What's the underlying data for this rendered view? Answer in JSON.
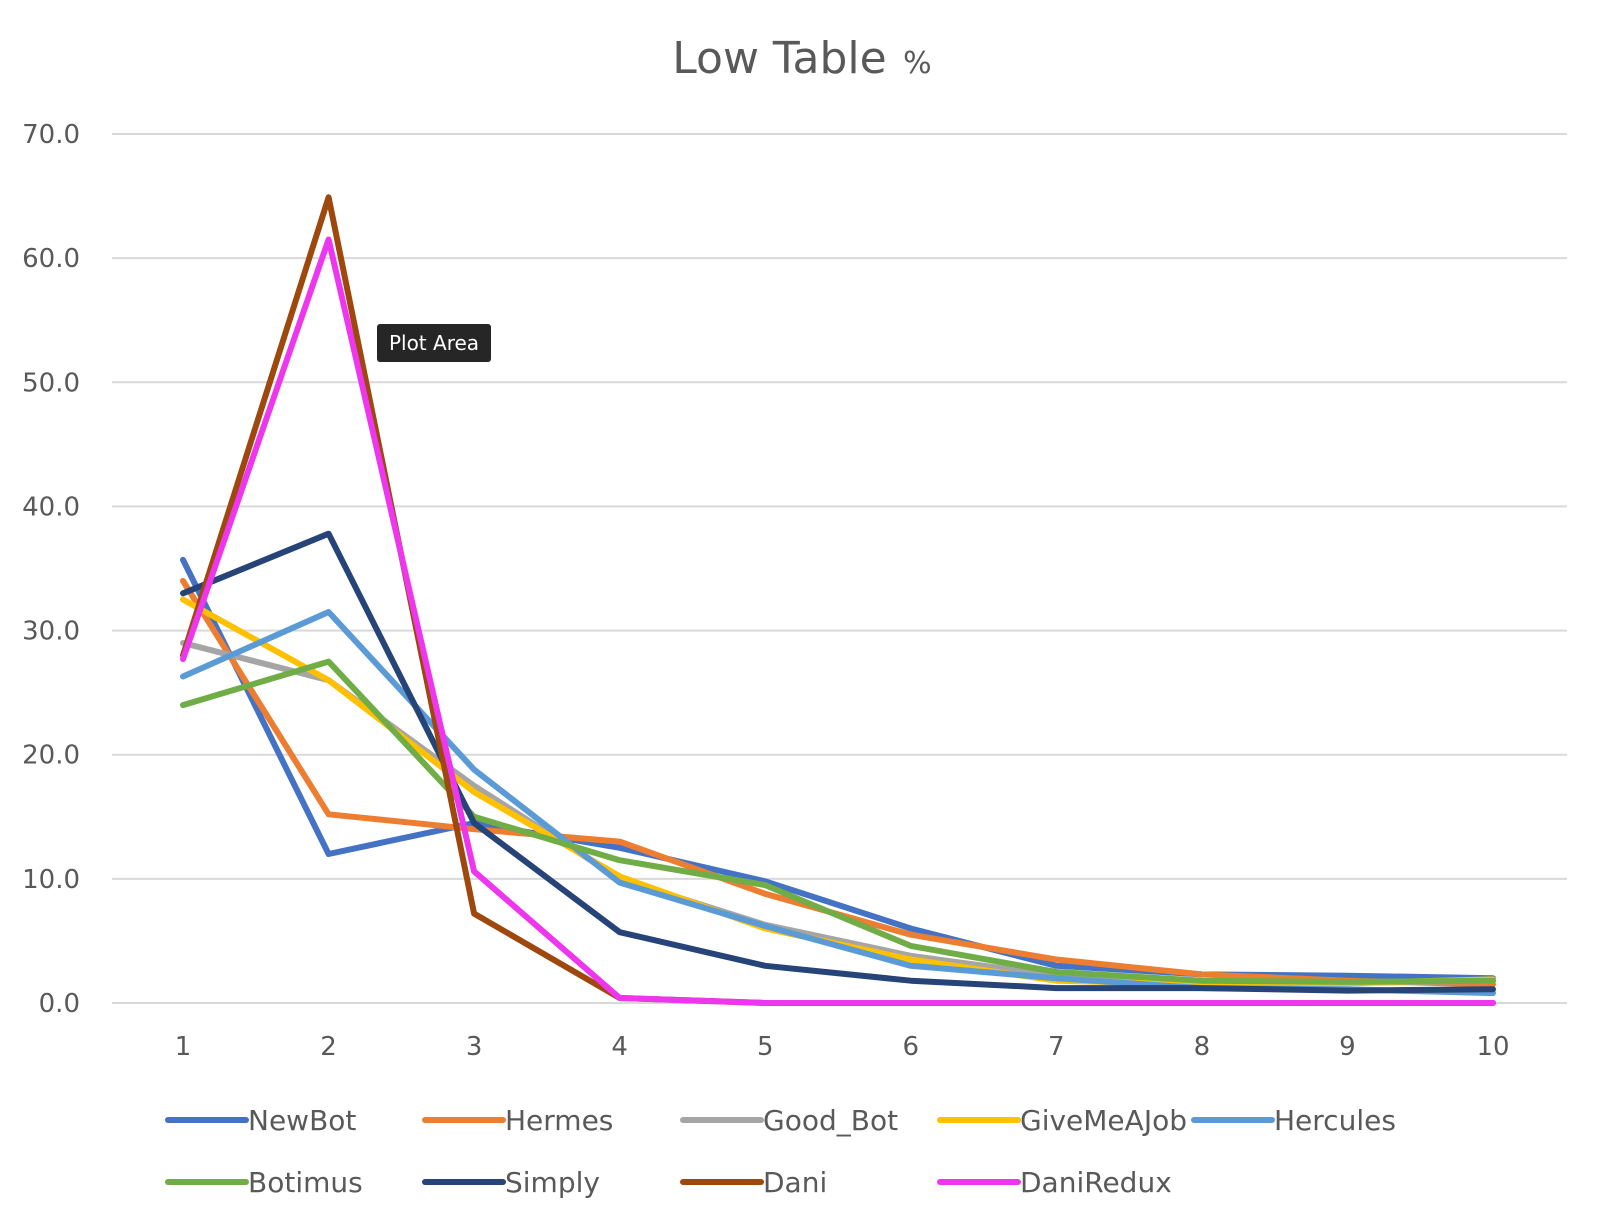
{
  "chart_data": {
    "type": "line",
    "title": "Low Table",
    "title_unit": "%",
    "xlabel": "",
    "ylabel": "",
    "categories": [
      "1",
      "2",
      "3",
      "4",
      "5",
      "6",
      "7",
      "8",
      "9",
      "10"
    ],
    "y_ticks": [
      "0.0",
      "10.0",
      "20.0",
      "30.0",
      "40.0",
      "50.0",
      "60.0",
      "70.0"
    ],
    "ylim": [
      0,
      70
    ],
    "grid": "horizontal",
    "legend_position": "bottom",
    "series": [
      {
        "name": "NewBot",
        "color": "#4472C4",
        "values": [
          35.7,
          12.0,
          14.5,
          12.5,
          9.8,
          6.0,
          3.0,
          2.3,
          2.2,
          2.0
        ]
      },
      {
        "name": "Hermes",
        "color": "#ED7D31",
        "values": [
          34.0,
          15.2,
          14.0,
          13.0,
          8.8,
          5.5,
          3.5,
          2.3,
          1.8,
          1.5
        ]
      },
      {
        "name": "Good_Bot",
        "color": "#A5A5A5",
        "values": [
          29.0,
          26.0,
          17.5,
          10.0,
          6.3,
          3.8,
          2.2,
          1.7,
          1.6,
          1.8
        ]
      },
      {
        "name": "GiveMeAJob",
        "color": "#FFC000",
        "values": [
          32.5,
          26.0,
          17.0,
          10.2,
          6.0,
          3.5,
          1.8,
          1.5,
          1.6,
          1.9
        ]
      },
      {
        "name": "Hercules",
        "color": "#5B9BD5",
        "values": [
          26.3,
          31.5,
          18.8,
          9.7,
          6.2,
          3.0,
          2.0,
          1.2,
          1.1,
          0.8
        ]
      },
      {
        "name": "Botimus",
        "color": "#70AD47",
        "values": [
          24.0,
          27.5,
          15.0,
          11.5,
          9.5,
          4.6,
          2.5,
          1.8,
          1.7,
          1.8
        ]
      },
      {
        "name": "Simply",
        "color": "#264478",
        "values": [
          33.0,
          37.8,
          14.5,
          5.7,
          3.0,
          1.8,
          1.2,
          1.2,
          1.0,
          1.1
        ]
      },
      {
        "name": "Dani",
        "color": "#9E480E",
        "values": [
          28.0,
          64.9,
          7.2,
          0.4,
          0.0,
          0.0,
          0.0,
          0.0,
          0.0,
          0.0
        ]
      },
      {
        "name": "DaniRedux",
        "color": "#EE36EE",
        "values": [
          27.7,
          61.5,
          10.6,
          0.4,
          0.0,
          0.0,
          0.0,
          0.0,
          0.0,
          0.0
        ]
      }
    ]
  },
  "tooltip": {
    "label": "Plot Area"
  }
}
